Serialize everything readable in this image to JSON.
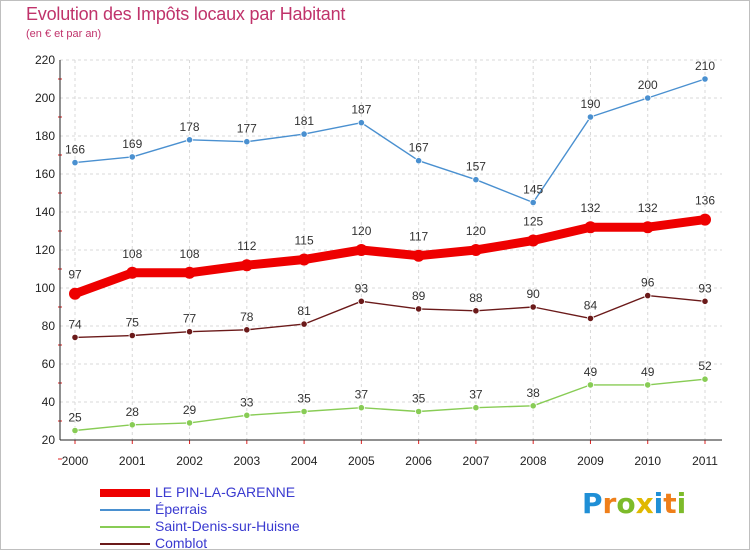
{
  "chart_data": {
    "type": "line",
    "title": "Evolution des Impôts locaux par Habitant",
    "subtitle": "(en € et par an)",
    "categories": [
      "2000",
      "2001",
      "2002",
      "2003",
      "2004",
      "2005",
      "2006",
      "2007",
      "2008",
      "2009",
      "2010",
      "2011"
    ],
    "ylim": [
      20,
      220
    ],
    "yticks": [
      "20",
      "40",
      "60",
      "80",
      "100",
      "120",
      "140",
      "160",
      "180",
      "200",
      "220"
    ],
    "grid": true,
    "legend_position": "bottom-left",
    "series": [
      {
        "name": "LE PIN-LA-GARENNE",
        "color": "#ee0000",
        "values": [
          97,
          108,
          108,
          112,
          115,
          120,
          117,
          120,
          125,
          132,
          132,
          136
        ]
      },
      {
        "name": "Éperrais",
        "color": "#4a90d0",
        "values": [
          166,
          169,
          178,
          177,
          181,
          187,
          167,
          157,
          145,
          190,
          200,
          210
        ]
      },
      {
        "name": "Saint-Denis-sur-Huisne",
        "color": "#88cc55",
        "values": [
          25,
          28,
          29,
          33,
          35,
          37,
          35,
          37,
          38,
          49,
          49,
          52
        ]
      },
      {
        "name": "Comblot",
        "color": "#6b1a1a",
        "values": [
          74,
          75,
          77,
          78,
          81,
          93,
          89,
          88,
          90,
          84,
          96,
          93
        ]
      }
    ]
  },
  "brand": {
    "letters": [
      "P",
      "r",
      "o",
      "x",
      "i",
      "t",
      "i"
    ],
    "colors": [
      "#1f8fd6",
      "#ef7f1a",
      "#7dbb2a",
      "#e0b800",
      "#1f8fd6",
      "#ef7f1a",
      "#7dbb2a"
    ]
  }
}
